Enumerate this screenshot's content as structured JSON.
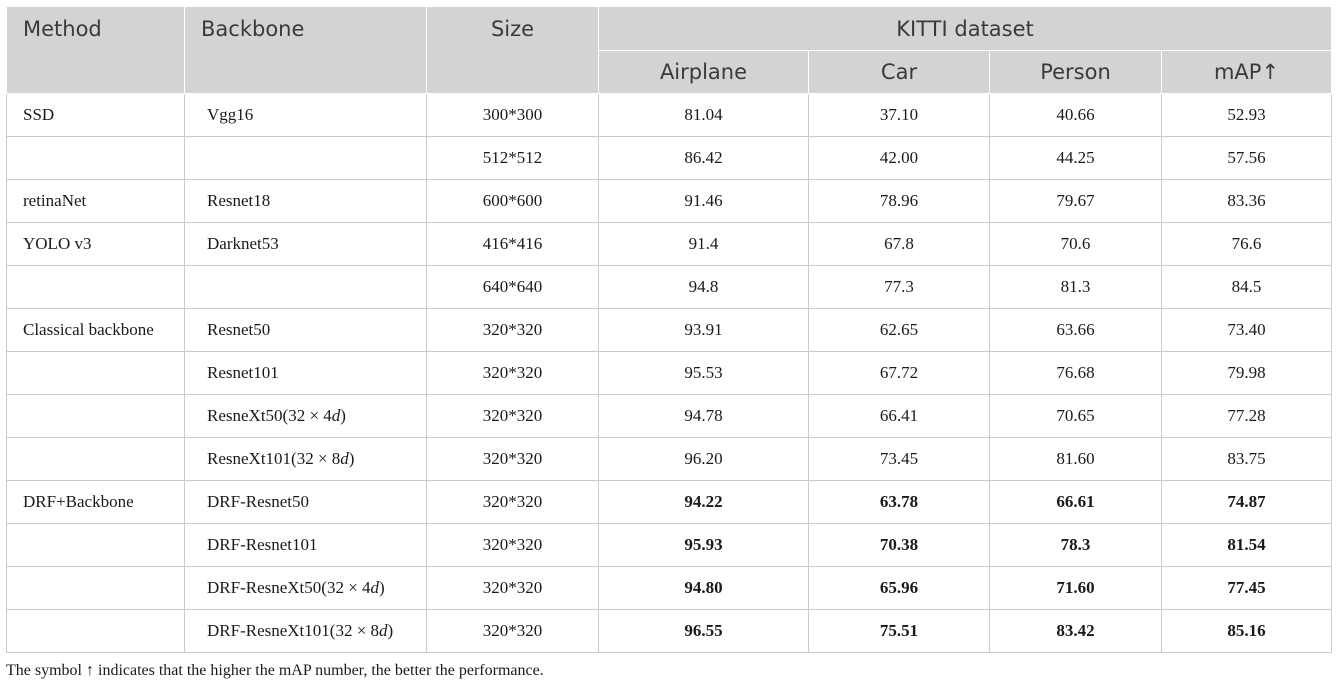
{
  "header": {
    "method": "Method",
    "backbone": "Backbone",
    "size": "Size",
    "dataset": "KITTI dataset",
    "airplane": "Airplane",
    "car": "Car",
    "person": "Person",
    "map": "mAP↑"
  },
  "rows": [
    {
      "method": "SSD",
      "backbone": "Vgg16",
      "size": "300*300",
      "airplane": "81.04",
      "car": "37.10",
      "person": "40.66",
      "map": "52.93",
      "bold": false
    },
    {
      "method": "",
      "backbone": "",
      "size": "512*512",
      "airplane": "86.42",
      "car": "42.00",
      "person": "44.25",
      "map": "57.56",
      "bold": false
    },
    {
      "method": "retinaNet",
      "backbone": "Resnet18",
      "size": "600*600",
      "airplane": "91.46",
      "car": "78.96",
      "person": "79.67",
      "map": "83.36",
      "bold": false
    },
    {
      "method": "YOLO v3",
      "backbone": "Darknet53",
      "size": "416*416",
      "airplane": "91.4",
      "car": "67.8",
      "person": "70.6",
      "map": "76.6",
      "bold": false
    },
    {
      "method": "",
      "backbone": "",
      "size": "640*640",
      "airplane": "94.8",
      "car": "77.3",
      "person": "81.3",
      "map": "84.5",
      "bold": false
    },
    {
      "method": "Classical backbone",
      "backbone": "Resnet50",
      "size": "320*320",
      "airplane": "93.91",
      "car": "62.65",
      "person": "63.66",
      "map": "73.40",
      "bold": false
    },
    {
      "method": "",
      "backbone": "Resnet101",
      "size": "320*320",
      "airplane": "95.53",
      "car": "67.72",
      "person": "76.68",
      "map": "79.98",
      "bold": false
    },
    {
      "method": "",
      "backbone": "ResneXt50(32 × 4d)",
      "size": "320*320",
      "airplane": "94.78",
      "car": "66.41",
      "person": "70.65",
      "map": "77.28",
      "bold": false
    },
    {
      "method": "",
      "backbone": "ResneXt101(32 × 8d)",
      "size": "320*320",
      "airplane": "96.20",
      "car": "73.45",
      "person": "81.60",
      "map": "83.75",
      "bold": false
    },
    {
      "method": "DRF+Backbone",
      "backbone": "DRF-Resnet50",
      "size": "320*320",
      "airplane": "94.22",
      "car": "63.78",
      "person": "66.61",
      "map": "74.87",
      "bold": true
    },
    {
      "method": "",
      "backbone": "DRF-Resnet101",
      "size": "320*320",
      "airplane": "95.93",
      "car": "70.38",
      "person": "78.3",
      "map": "81.54",
      "bold": true
    },
    {
      "method": "",
      "backbone": "DRF-ResneXt50(32 × 4d)",
      "size": "320*320",
      "airplane": "94.80",
      "car": "65.96",
      "person": "71.60",
      "map": "77.45",
      "bold": true
    },
    {
      "method": "",
      "backbone": "DRF-ResneXt101(32 × 8d)",
      "size": "320*320",
      "airplane": "96.55",
      "car": "75.51",
      "person": "83.42",
      "map": "85.16",
      "bold": true
    }
  ],
  "footnote": "The symbol ↑ indicates that the higher the mAP number, the better the performance."
}
